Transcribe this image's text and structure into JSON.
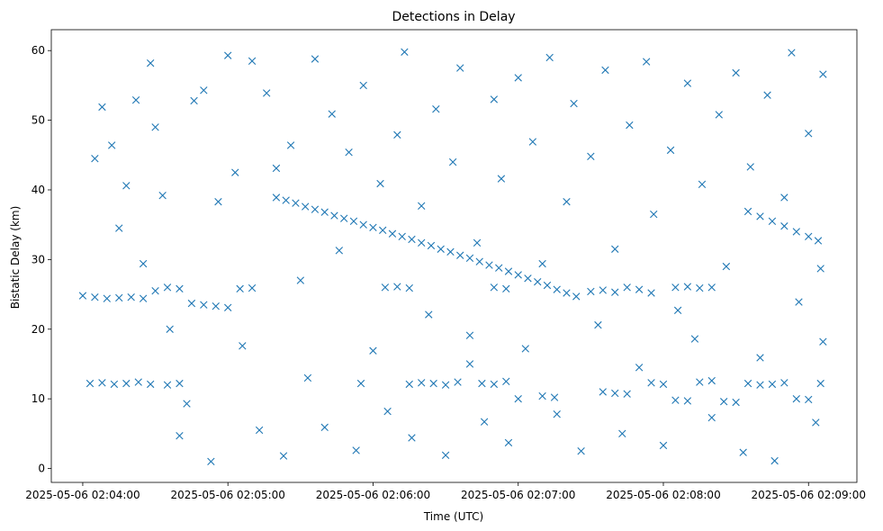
{
  "chart_data": {
    "type": "scatter",
    "title": "Detections in Delay",
    "xlabel": "Time (UTC)",
    "ylabel": "Bistatic Delay (km)",
    "marker": "x",
    "color": "#1f77b4",
    "x_unit": "time",
    "x_start": "2025-05-06 02:04:00",
    "xlim": [
      "2025-05-06 02:03:47",
      "2025-05-06 02:09:20"
    ],
    "ylim": [
      -2.0,
      63.0
    ],
    "xticks": [
      "2025-05-06 02:04:00",
      "2025-05-06 02:05:00",
      "2025-05-06 02:06:00",
      "2025-05-06 02:07:00",
      "2025-05-06 02:08:00",
      "2025-05-06 02:09:00"
    ],
    "yticks": [
      0,
      10,
      20,
      30,
      40,
      50,
      60
    ],
    "grid": false,
    "legend": "none",
    "series": [
      {
        "description": "Main descending target track",
        "points": [
          [
            "2025-05-06 02:05:20",
            38.9
          ],
          [
            "2025-05-06 02:05:24",
            38.5
          ],
          [
            "2025-05-06 02:05:28",
            38.1
          ],
          [
            "2025-05-06 02:05:32",
            37.6
          ],
          [
            "2025-05-06 02:05:36",
            37.2
          ],
          [
            "2025-05-06 02:05:40",
            36.8
          ],
          [
            "2025-05-06 02:05:44",
            36.3
          ],
          [
            "2025-05-06 02:05:48",
            35.9
          ],
          [
            "2025-05-06 02:05:52",
            35.5
          ],
          [
            "2025-05-06 02:05:56",
            35.0
          ],
          [
            "2025-05-06 02:06:00",
            34.6
          ],
          [
            "2025-05-06 02:06:04",
            34.2
          ],
          [
            "2025-05-06 02:06:08",
            33.7
          ],
          [
            "2025-05-06 02:06:12",
            33.3
          ],
          [
            "2025-05-06 02:06:16",
            32.9
          ],
          [
            "2025-05-06 02:06:20",
            32.4
          ],
          [
            "2025-05-06 02:06:24",
            32.0
          ],
          [
            "2025-05-06 02:06:28",
            31.5
          ],
          [
            "2025-05-06 02:06:32",
            31.1
          ],
          [
            "2025-05-06 02:06:36",
            30.6
          ],
          [
            "2025-05-06 02:06:40",
            30.2
          ],
          [
            "2025-05-06 02:06:44",
            29.7
          ],
          [
            "2025-05-06 02:06:48",
            29.2
          ],
          [
            "2025-05-06 02:06:52",
            28.8
          ],
          [
            "2025-05-06 02:06:56",
            28.3
          ],
          [
            "2025-05-06 02:07:00",
            27.8
          ],
          [
            "2025-05-06 02:07:04",
            27.3
          ],
          [
            "2025-05-06 02:07:08",
            26.8
          ],
          [
            "2025-05-06 02:07:12",
            26.3
          ],
          [
            "2025-05-06 02:07:16",
            25.7
          ],
          [
            "2025-05-06 02:07:20",
            25.2
          ],
          [
            "2025-05-06 02:07:24",
            24.7
          ]
        ]
      },
      {
        "description": "Second descending track",
        "points": [
          [
            "2025-05-06 02:08:35",
            36.9
          ],
          [
            "2025-05-06 02:08:40",
            36.2
          ],
          [
            "2025-05-06 02:08:45",
            35.5
          ],
          [
            "2025-05-06 02:08:50",
            34.8
          ],
          [
            "2025-05-06 02:08:55",
            34.0
          ],
          [
            "2025-05-06 02:09:00",
            33.3
          ],
          [
            "2025-05-06 02:09:04",
            32.7
          ]
        ]
      },
      {
        "description": "Near-constant band ~25 km",
        "points": [
          [
            "2025-05-06 02:04:00",
            24.8
          ],
          [
            "2025-05-06 02:04:05",
            24.6
          ],
          [
            "2025-05-06 02:04:10",
            24.4
          ],
          [
            "2025-05-06 02:04:15",
            24.5
          ],
          [
            "2025-05-06 02:04:20",
            24.6
          ],
          [
            "2025-05-06 02:04:25",
            24.4
          ],
          [
            "2025-05-06 02:04:30",
            25.5
          ],
          [
            "2025-05-06 02:04:35",
            26.0
          ],
          [
            "2025-05-06 02:04:40",
            25.8
          ],
          [
            "2025-05-06 02:04:45",
            23.7
          ],
          [
            "2025-05-06 02:04:50",
            23.5
          ],
          [
            "2025-05-06 02:04:55",
            23.3
          ],
          [
            "2025-05-06 02:05:00",
            23.1
          ],
          [
            "2025-05-06 02:05:05",
            25.8
          ],
          [
            "2025-05-06 02:05:10",
            25.9
          ],
          [
            "2025-05-06 02:06:05",
            26.0
          ],
          [
            "2025-05-06 02:06:10",
            26.1
          ],
          [
            "2025-05-06 02:06:15",
            25.9
          ],
          [
            "2025-05-06 02:06:50",
            26.0
          ],
          [
            "2025-05-06 02:06:55",
            25.8
          ],
          [
            "2025-05-06 02:07:30",
            25.4
          ],
          [
            "2025-05-06 02:07:35",
            25.6
          ],
          [
            "2025-05-06 02:07:40",
            25.3
          ],
          [
            "2025-05-06 02:07:45",
            26.0
          ],
          [
            "2025-05-06 02:07:50",
            25.7
          ],
          [
            "2025-05-06 02:07:55",
            25.2
          ],
          [
            "2025-05-06 02:08:05",
            26.0
          ],
          [
            "2025-05-06 02:08:10",
            26.1
          ],
          [
            "2025-05-06 02:08:15",
            25.9
          ],
          [
            "2025-05-06 02:08:20",
            26.0
          ]
        ]
      },
      {
        "description": "Near-constant band ~12 km",
        "points": [
          [
            "2025-05-06 02:04:03",
            12.2
          ],
          [
            "2025-05-06 02:04:08",
            12.3
          ],
          [
            "2025-05-06 02:04:13",
            12.1
          ],
          [
            "2025-05-06 02:04:18",
            12.2
          ],
          [
            "2025-05-06 02:04:23",
            12.4
          ],
          [
            "2025-05-06 02:04:28",
            12.1
          ],
          [
            "2025-05-06 02:04:35",
            12.0
          ],
          [
            "2025-05-06 02:04:40",
            12.2
          ],
          [
            "2025-05-06 02:05:55",
            12.2
          ],
          [
            "2025-05-06 02:06:15",
            12.1
          ],
          [
            "2025-05-06 02:06:20",
            12.3
          ],
          [
            "2025-05-06 02:06:25",
            12.2
          ],
          [
            "2025-05-06 02:06:30",
            12.0
          ],
          [
            "2025-05-06 02:06:35",
            12.4
          ],
          [
            "2025-05-06 02:06:40",
            15.0
          ],
          [
            "2025-05-06 02:06:45",
            12.2
          ],
          [
            "2025-05-06 02:06:50",
            12.1
          ],
          [
            "2025-05-06 02:06:55",
            12.5
          ],
          [
            "2025-05-06 02:07:00",
            10.0
          ],
          [
            "2025-05-06 02:07:10",
            10.4
          ],
          [
            "2025-05-06 02:07:15",
            10.2
          ],
          [
            "2025-05-06 02:07:35",
            11.0
          ],
          [
            "2025-05-06 02:07:40",
            10.8
          ],
          [
            "2025-05-06 02:07:45",
            10.7
          ],
          [
            "2025-05-06 02:07:55",
            12.3
          ],
          [
            "2025-05-06 02:08:00",
            12.1
          ],
          [
            "2025-05-06 02:08:05",
            9.8
          ],
          [
            "2025-05-06 02:08:10",
            9.7
          ],
          [
            "2025-05-06 02:08:15",
            12.4
          ],
          [
            "2025-05-06 02:08:20",
            12.6
          ],
          [
            "2025-05-06 02:08:25",
            9.6
          ],
          [
            "2025-05-06 02:08:30",
            9.5
          ],
          [
            "2025-05-06 02:08:35",
            12.2
          ],
          [
            "2025-05-06 02:08:40",
            12.0
          ],
          [
            "2025-05-06 02:08:45",
            12.1
          ],
          [
            "2025-05-06 02:08:50",
            12.3
          ],
          [
            "2025-05-06 02:08:55",
            10.0
          ],
          [
            "2025-05-06 02:09:00",
            9.9
          ],
          [
            "2025-05-06 02:09:05",
            12.2
          ]
        ]
      },
      {
        "description": "Scattered noise detections",
        "points": [
          [
            "2025-05-06 02:04:05",
            44.5
          ],
          [
            "2025-05-06 02:04:08",
            51.9
          ],
          [
            "2025-05-06 02:04:12",
            46.4
          ],
          [
            "2025-05-06 02:04:15",
            34.5
          ],
          [
            "2025-05-06 02:04:18",
            40.6
          ],
          [
            "2025-05-06 02:04:22",
            52.9
          ],
          [
            "2025-05-06 02:04:25",
            29.4
          ],
          [
            "2025-05-06 02:04:28",
            58.2
          ],
          [
            "2025-05-06 02:04:30",
            49.0
          ],
          [
            "2025-05-06 02:04:33",
            39.2
          ],
          [
            "2025-05-06 02:04:36",
            20.0
          ],
          [
            "2025-05-06 02:04:40",
            4.7
          ],
          [
            "2025-05-06 02:04:43",
            9.3
          ],
          [
            "2025-05-06 02:04:46",
            52.8
          ],
          [
            "2025-05-06 02:04:50",
            54.3
          ],
          [
            "2025-05-06 02:04:53",
            1.0
          ],
          [
            "2025-05-06 02:04:56",
            38.3
          ],
          [
            "2025-05-06 02:05:00",
            59.3
          ],
          [
            "2025-05-06 02:05:03",
            42.5
          ],
          [
            "2025-05-06 02:05:06",
            17.6
          ],
          [
            "2025-05-06 02:05:10",
            58.5
          ],
          [
            "2025-05-06 02:05:13",
            5.5
          ],
          [
            "2025-05-06 02:05:16",
            53.9
          ],
          [
            "2025-05-06 02:05:20",
            43.1
          ],
          [
            "2025-05-06 02:05:23",
            1.8
          ],
          [
            "2025-05-06 02:05:26",
            46.4
          ],
          [
            "2025-05-06 02:05:30",
            27.0
          ],
          [
            "2025-05-06 02:05:33",
            13.0
          ],
          [
            "2025-05-06 02:05:36",
            58.8
          ],
          [
            "2025-05-06 02:05:40",
            5.9
          ],
          [
            "2025-05-06 02:05:43",
            50.9
          ],
          [
            "2025-05-06 02:05:46",
            31.3
          ],
          [
            "2025-05-06 02:05:50",
            45.4
          ],
          [
            "2025-05-06 02:05:53",
            2.6
          ],
          [
            "2025-05-06 02:05:56",
            55.0
          ],
          [
            "2025-05-06 02:06:00",
            16.9
          ],
          [
            "2025-05-06 02:06:03",
            40.9
          ],
          [
            "2025-05-06 02:06:06",
            8.2
          ],
          [
            "2025-05-06 02:06:10",
            47.9
          ],
          [
            "2025-05-06 02:06:13",
            59.8
          ],
          [
            "2025-05-06 02:06:16",
            4.4
          ],
          [
            "2025-05-06 02:06:20",
            37.7
          ],
          [
            "2025-05-06 02:06:23",
            22.1
          ],
          [
            "2025-05-06 02:06:26",
            51.6
          ],
          [
            "2025-05-06 02:06:30",
            1.9
          ],
          [
            "2025-05-06 02:06:33",
            44.0
          ],
          [
            "2025-05-06 02:06:36",
            57.5
          ],
          [
            "2025-05-06 02:06:40",
            19.1
          ],
          [
            "2025-05-06 02:06:43",
            32.4
          ],
          [
            "2025-05-06 02:06:46",
            6.7
          ],
          [
            "2025-05-06 02:06:50",
            53.0
          ],
          [
            "2025-05-06 02:06:53",
            41.6
          ],
          [
            "2025-05-06 02:06:56",
            3.7
          ],
          [
            "2025-05-06 02:07:00",
            56.1
          ],
          [
            "2025-05-06 02:07:03",
            17.2
          ],
          [
            "2025-05-06 02:07:06",
            46.9
          ],
          [
            "2025-05-06 02:07:10",
            29.4
          ],
          [
            "2025-05-06 02:07:13",
            59.0
          ],
          [
            "2025-05-06 02:07:16",
            7.8
          ],
          [
            "2025-05-06 02:07:20",
            38.3
          ],
          [
            "2025-05-06 02:07:23",
            52.4
          ],
          [
            "2025-05-06 02:07:26",
            2.5
          ],
          [
            "2025-05-06 02:07:30",
            44.8
          ],
          [
            "2025-05-06 02:07:33",
            20.6
          ],
          [
            "2025-05-06 02:07:36",
            57.2
          ],
          [
            "2025-05-06 02:07:40",
            31.5
          ],
          [
            "2025-05-06 02:07:43",
            5.0
          ],
          [
            "2025-05-06 02:07:46",
            49.3
          ],
          [
            "2025-05-06 02:07:50",
            14.5
          ],
          [
            "2025-05-06 02:07:53",
            58.4
          ],
          [
            "2025-05-06 02:07:56",
            36.5
          ],
          [
            "2025-05-06 02:08:00",
            3.3
          ],
          [
            "2025-05-06 02:08:03",
            45.7
          ],
          [
            "2025-05-06 02:08:06",
            22.7
          ],
          [
            "2025-05-06 02:08:10",
            55.3
          ],
          [
            "2025-05-06 02:08:13",
            18.6
          ],
          [
            "2025-05-06 02:08:16",
            40.8
          ],
          [
            "2025-05-06 02:08:20",
            7.3
          ],
          [
            "2025-05-06 02:08:23",
            50.8
          ],
          [
            "2025-05-06 02:08:26",
            29.0
          ],
          [
            "2025-05-06 02:08:30",
            56.8
          ],
          [
            "2025-05-06 02:08:33",
            2.3
          ],
          [
            "2025-05-06 02:08:36",
            43.3
          ],
          [
            "2025-05-06 02:08:40",
            15.9
          ],
          [
            "2025-05-06 02:08:43",
            53.6
          ],
          [
            "2025-05-06 02:08:46",
            1.1
          ],
          [
            "2025-05-06 02:08:50",
            38.9
          ],
          [
            "2025-05-06 02:08:53",
            59.7
          ],
          [
            "2025-05-06 02:08:56",
            23.9
          ],
          [
            "2025-05-06 02:09:00",
            48.1
          ],
          [
            "2025-05-06 02:09:03",
            6.6
          ],
          [
            "2025-05-06 02:09:06",
            56.6
          ],
          [
            "2025-05-06 02:09:06",
            18.2
          ],
          [
            "2025-05-06 02:09:05",
            28.7
          ]
        ]
      }
    ]
  }
}
